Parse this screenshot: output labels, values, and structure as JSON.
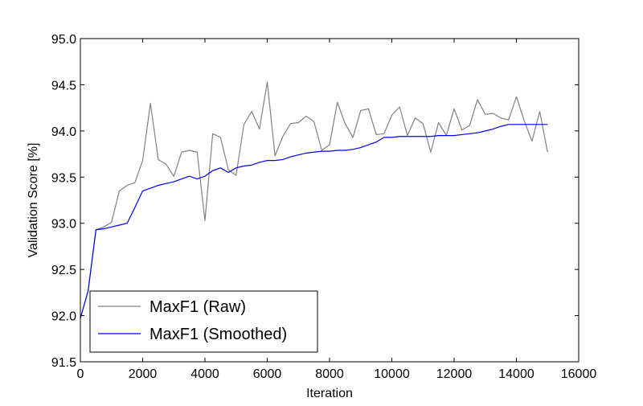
{
  "chart_data": {
    "type": "line",
    "title": "",
    "xlabel": "Iteration",
    "ylabel": "Validation Score [%]",
    "xlim": [
      0,
      16000
    ],
    "ylim": [
      91.5,
      95.0
    ],
    "xticks": [
      0,
      2000,
      4000,
      6000,
      8000,
      10000,
      12000,
      14000,
      16000
    ],
    "yticks": [
      91.5,
      92.0,
      92.5,
      93.0,
      93.5,
      94.0,
      94.5,
      95.0
    ],
    "grid": false,
    "legend_position": "lower-left",
    "x": [
      0,
      250,
      500,
      750,
      1000,
      1250,
      1500,
      1750,
      2000,
      2250,
      2500,
      2750,
      3000,
      3250,
      3500,
      3750,
      4000,
      4250,
      4500,
      4750,
      5000,
      5250,
      5500,
      5750,
      6000,
      6250,
      6500,
      6750,
      7000,
      7250,
      7500,
      7750,
      8000,
      8250,
      8500,
      8750,
      9000,
      9250,
      9500,
      9750,
      10000,
      10250,
      10500,
      10750,
      11000,
      11250,
      11500,
      11750,
      12000,
      12250,
      12500,
      12750,
      13000,
      13250,
      13500,
      13750,
      14000,
      14250,
      14500,
      14750,
      15000
    ],
    "series": [
      {
        "name": "MaxF1 (Raw)",
        "color": "#808080",
        "values": [
          91.97,
          92.27,
          92.93,
          92.96,
          93.01,
          93.35,
          93.41,
          93.44,
          93.68,
          94.3,
          93.69,
          93.64,
          93.51,
          93.77,
          93.79,
          93.77,
          93.03,
          93.97,
          93.93,
          93.58,
          93.52,
          94.07,
          94.21,
          94.02,
          94.53,
          93.73,
          93.94,
          94.08,
          94.09,
          94.16,
          94.1,
          93.79,
          93.85,
          94.31,
          94.08,
          93.93,
          94.22,
          94.24,
          93.96,
          93.97,
          94.17,
          94.26,
          93.95,
          94.14,
          94.08,
          93.77,
          94.09,
          93.95,
          94.24,
          94.01,
          94.06,
          94.34,
          94.18,
          94.19,
          94.14,
          94.12,
          94.37,
          94.11,
          93.89,
          94.21,
          93.77
        ]
      },
      {
        "name": "MaxF1 (Smoothed)",
        "color": "#0000ff",
        "values": [
          91.97,
          92.27,
          92.93,
          92.94,
          92.96,
          92.98,
          93.0,
          93.17,
          93.35,
          93.38,
          93.41,
          93.43,
          93.45,
          93.48,
          93.51,
          93.48,
          93.51,
          93.57,
          93.6,
          93.55,
          93.6,
          93.62,
          93.63,
          93.66,
          93.68,
          93.68,
          93.69,
          93.72,
          93.74,
          93.76,
          93.77,
          93.78,
          93.78,
          93.79,
          93.79,
          93.8,
          93.82,
          93.85,
          93.88,
          93.93,
          93.93,
          93.94,
          93.94,
          93.94,
          93.94,
          93.94,
          93.95,
          93.95,
          93.95,
          93.96,
          93.97,
          93.98,
          94.0,
          94.02,
          94.05,
          94.07,
          94.07,
          94.07,
          94.07,
          94.07,
          94.07
        ]
      }
    ]
  }
}
